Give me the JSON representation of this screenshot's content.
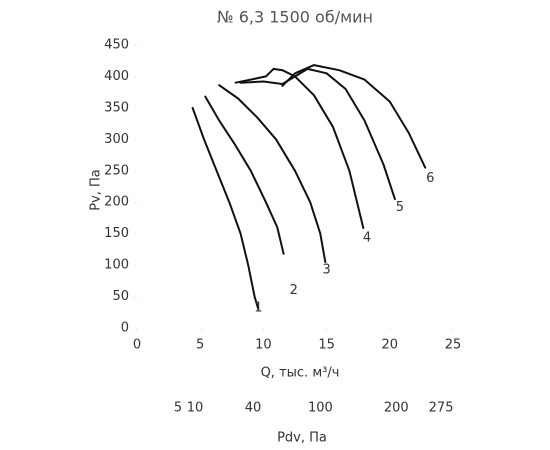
{
  "chart_data": {
    "type": "line",
    "title": "№ 6,3 1500 об/мин",
    "xlabel": "Q, тыс. м³/ч",
    "ylabel": "Pv, Па",
    "x2label": "Pdv, Па",
    "xlim": [
      0,
      25
    ],
    "xticks": [
      0,
      5,
      10,
      15,
      20,
      25
    ],
    "ylim": [
      0,
      450
    ],
    "yticks": [
      0,
      50,
      100,
      150,
      200,
      250,
      300,
      350,
      400,
      450
    ],
    "x2scale": "sqrt",
    "x2lim": [
      0,
      297
    ],
    "x2ticks": [
      5,
      10,
      40,
      100,
      200,
      275
    ],
    "grid": false,
    "series": [
      {
        "name": "1",
        "color": "#111111",
        "x": [
          4.4,
          5.3,
          6.3,
          7.3,
          8.2,
          8.8,
          9.3,
          9.6
        ],
        "y": [
          350,
          300,
          250,
          200,
          150,
          100,
          50,
          30
        ]
      },
      {
        "name": "2",
        "color": "#111111",
        "x": [
          5.4,
          6.5,
          7.8,
          9,
          10.2,
          11.1,
          11.6
        ],
        "y": [
          368,
          330,
          290,
          250,
          200,
          160,
          118
        ]
      },
      {
        "name": "3",
        "color": "#111111",
        "x": [
          6.5,
          8,
          9.5,
          11,
          12.5,
          13.7,
          14.5,
          14.9
        ],
        "y": [
          386,
          365,
          335,
          300,
          250,
          200,
          150,
          105
        ]
      },
      {
        "name": "4",
        "color": "#111111",
        "x": [
          7.8,
          9,
          10.2,
          10.8,
          11.5,
          12.5,
          14,
          15.5,
          16.8,
          17.9
        ],
        "y": [
          390,
          395,
          400,
          412,
          410,
          400,
          370,
          320,
          250,
          159
        ]
      },
      {
        "name": "5",
        "color": "#111111",
        "x": [
          8.2,
          10,
          11.5,
          12.5,
          13.5,
          15,
          16.5,
          18,
          19.5,
          20.4
        ],
        "y": [
          390,
          392,
          388,
          400,
          412,
          405,
          380,
          330,
          260,
          205
        ]
      },
      {
        "name": "6",
        "color": "#111111",
        "x": [
          11.5,
          12.5,
          14,
          16,
          18,
          20,
          21.5,
          22.8
        ],
        "y": [
          385,
          405,
          418,
          410,
          395,
          360,
          310,
          255
        ]
      }
    ],
    "annotations": [
      {
        "text": "1",
        "x": 9.6,
        "y": 32
      },
      {
        "text": "2",
        "x": 12.4,
        "y": 60
      },
      {
        "text": "3",
        "x": 15,
        "y": 92
      },
      {
        "text": "4",
        "x": 18.2,
        "y": 143
      },
      {
        "text": "5",
        "x": 20.8,
        "y": 192
      },
      {
        "text": "6",
        "x": 23.2,
        "y": 238
      }
    ]
  }
}
